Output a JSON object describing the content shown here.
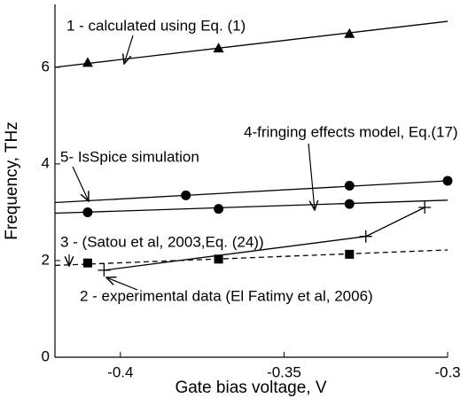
{
  "chart_data": {
    "type": "line",
    "x_label": "Gate bias voltage, V",
    "y_label": "Frequency, THz",
    "xlim": [
      -0.42,
      -0.3
    ],
    "xticks": [
      -0.4,
      -0.35,
      -0.3
    ],
    "ylim": [
      0,
      7.3
    ],
    "yticks": [
      0,
      2,
      4,
      6
    ],
    "color": "#000000",
    "series": [
      {
        "name": "1 - calculated  using  Eq. (1)",
        "marker": "triangle",
        "x": [
          -0.41,
          -0.37,
          -0.33
        ],
        "values": [
          6.1,
          6.4,
          6.7
        ],
        "fit_x": [
          -0.42,
          -0.3
        ],
        "fit_values": [
          6.0,
          6.95
        ],
        "fit_style": "solid"
      },
      {
        "name": "5- IsSpice simulation",
        "marker": "circle",
        "x": [
          -0.38,
          -0.33,
          -0.3
        ],
        "values": [
          3.35,
          3.55,
          3.65
        ],
        "fit_x": [
          -0.42,
          -0.3
        ],
        "fit_values": [
          3.2,
          3.65
        ],
        "fit_style": "solid"
      },
      {
        "name": "4-fringing effects model, Eq.(17)",
        "marker": "circle",
        "x": [
          -0.41,
          -0.37,
          -0.33
        ],
        "values": [
          3.0,
          3.07,
          3.17
        ],
        "fit_x": [
          -0.42,
          -0.3
        ],
        "fit_values": [
          2.98,
          3.25
        ],
        "fit_style": "solid"
      },
      {
        "name": "3 - (Satou et al, 2003,Eq. (24))",
        "marker": "cross",
        "x": [
          -0.405,
          -0.325,
          -0.307
        ],
        "values": [
          1.8,
          2.5,
          3.1
        ],
        "fit_x": [
          -0.405,
          -0.325,
          -0.307
        ],
        "fit_values": [
          1.8,
          2.5,
          3.1
        ],
        "fit_style": "solid"
      },
      {
        "name": "2 - experimental data (El Fatimy et al, 2006)",
        "marker": "square",
        "x": [
          -0.41,
          -0.37,
          -0.33
        ],
        "values": [
          1.95,
          2.03,
          2.13
        ],
        "fit_x": [
          -0.42,
          -0.3
        ],
        "fit_values": [
          1.9,
          2.22
        ],
        "fit_style": "dashed"
      }
    ]
  }
}
